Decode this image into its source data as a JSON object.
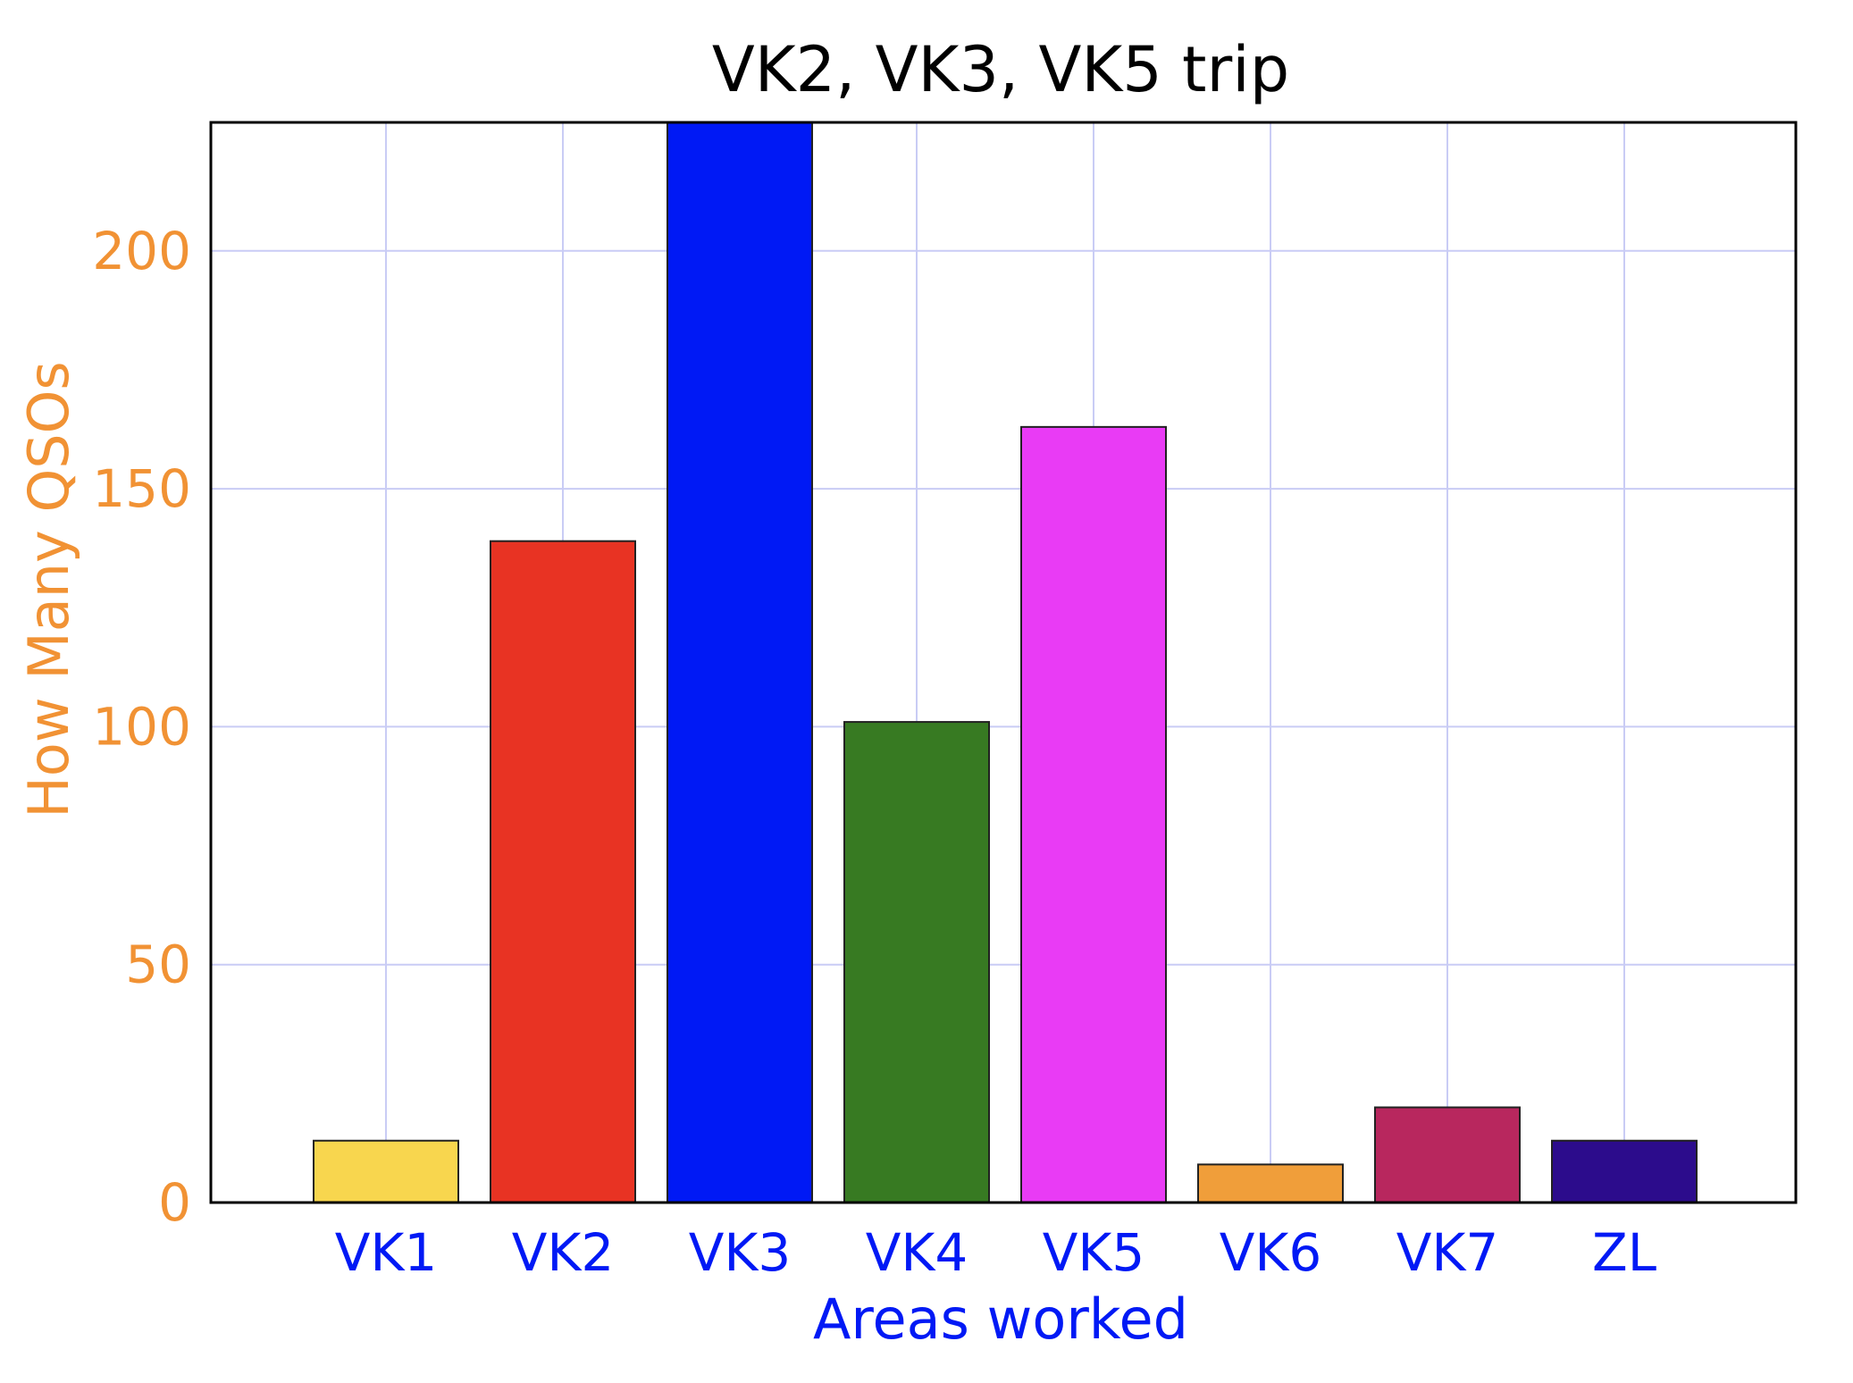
{
  "chart_data": {
    "type": "bar",
    "title": "VK2, VK3, VK5 trip",
    "xlabel": "Areas worked",
    "ylabel": "How Many QSOs",
    "categories": [
      "VK1",
      "VK2",
      "VK3",
      "VK4",
      "VK5",
      "VK6",
      "VK7",
      "ZL"
    ],
    "values": [
      13,
      139,
      227,
      101,
      163,
      8,
      20,
      13
    ],
    "bar_colors": [
      "#F8D64E",
      "#E83323",
      "#0019F5",
      "#377A22",
      "#E93BF5",
      "#F09E3A",
      "#B8275E",
      "#2C0C8C"
    ],
    "yticks": [
      0,
      50,
      100,
      150,
      200
    ],
    "ylim": [
      0,
      227
    ],
    "grid": true,
    "legend": "none",
    "colors": {
      "title": "#000000",
      "ylabel": "#F19234",
      "yticks": "#F19234",
      "xlabel": "#0019F5",
      "xticks": "#0019F5",
      "grid": "#C9CCF5",
      "axes": "#000000"
    }
  }
}
